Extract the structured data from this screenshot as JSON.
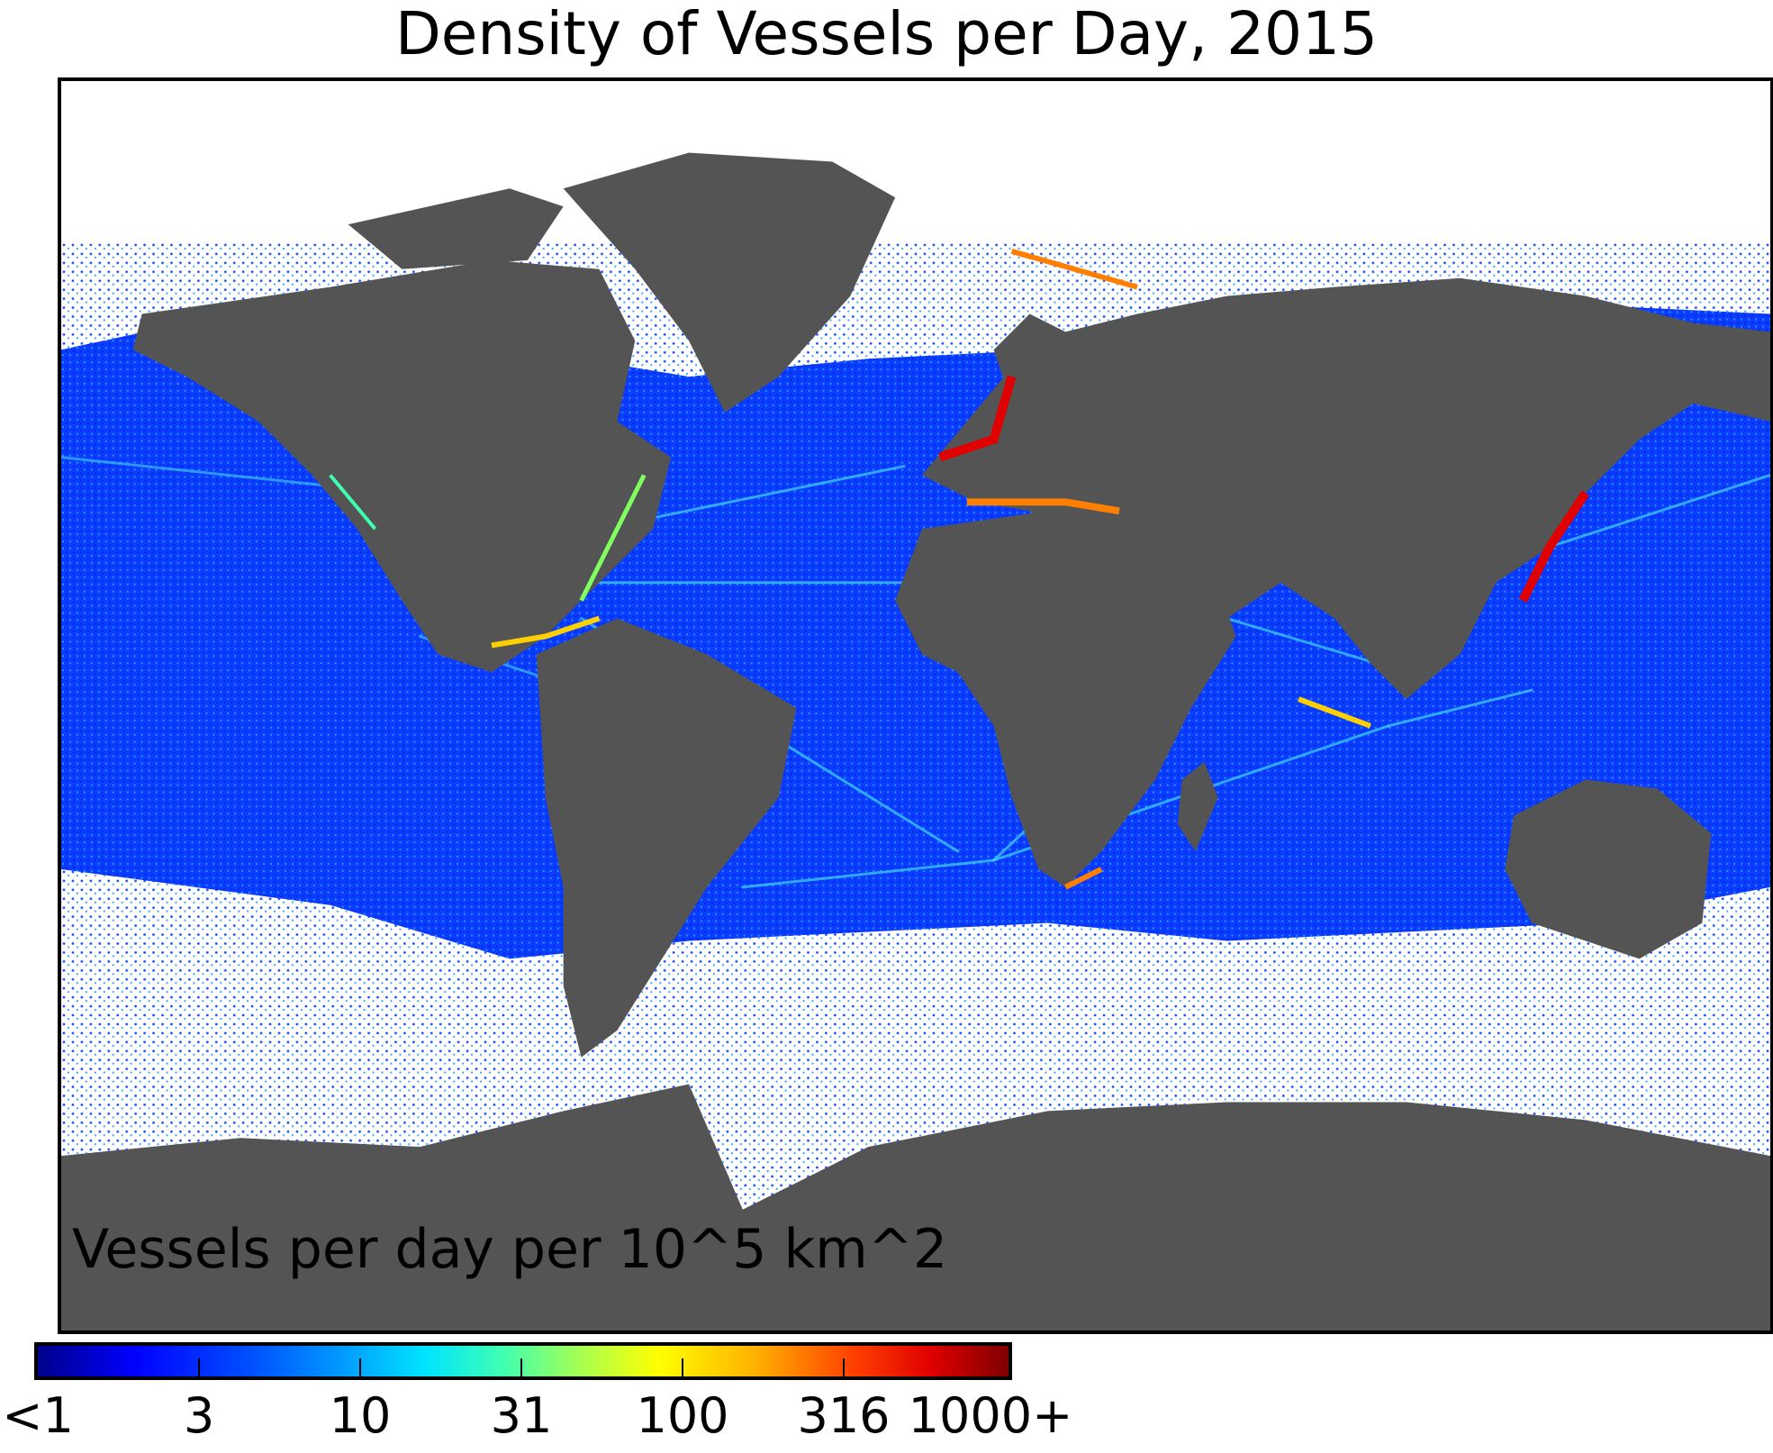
{
  "title": "Density of Vessels per Day, 2015",
  "map": {
    "caption": "Vessels per day per 10^5 km^2",
    "land_color": "#545454",
    "ocean_background": "#ffffff",
    "density_palette": [
      "#00008b",
      "#0000ff",
      "#0066ff",
      "#00ccff",
      "#40ffb0",
      "#ffff00",
      "#ff8000",
      "#e00000",
      "#800000"
    ]
  },
  "colorbar": {
    "tick_labels": [
      "<1",
      "3",
      "10",
      "31",
      "100",
      "316",
      "1000+"
    ],
    "tick_values": [
      1,
      3,
      10,
      31,
      100,
      316,
      1000
    ],
    "scale": "log"
  }
}
